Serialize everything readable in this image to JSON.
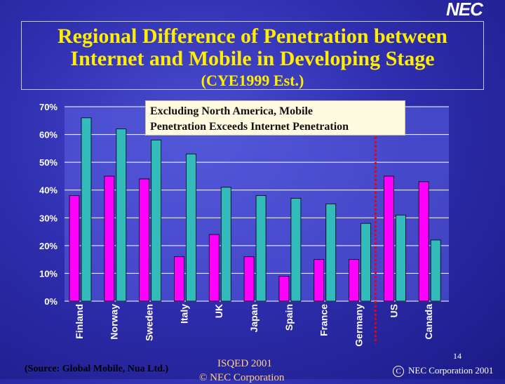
{
  "logo": {
    "text": "NEC"
  },
  "title": {
    "line1": "Regional Difference of Penetration between",
    "line2": "Internet and Mobile in Developing Stage",
    "subtitle": "(CYE1999 Est.)"
  },
  "callout": {
    "line1": "Excluding North America, Mobile",
    "line2": "Penetration Exceeds Internet Penetration"
  },
  "footer": {
    "source": "(Source: Global Mobile, Nua Ltd.)",
    "conference": "ISQED 2001",
    "conference_copy": "© NEC Corporation",
    "page_number": "14",
    "copyright_symbol": "C",
    "copyright": "NEC Corporation 2001"
  },
  "colors": {
    "mobile": "#ff00ff",
    "internet": "#33bbbb",
    "plot_bg": "#5a5fe0",
    "divider": "#ee0000",
    "title": "#ffee00"
  },
  "chart_data": {
    "type": "bar",
    "categories": [
      "Finland",
      "Norway",
      "Sweden",
      "Italy",
      "UK",
      "Japan",
      "Spain",
      "France",
      "Germany",
      "US",
      "Canada"
    ],
    "series": [
      {
        "values": [
          38,
          45,
          44,
          16,
          24,
          16,
          9,
          15,
          15,
          45,
          43
        ]
      },
      {
        "values": [
          66,
          62,
          58,
          53,
          41,
          38,
          37,
          35,
          28,
          31,
          22
        ]
      }
    ],
    "yticks": [
      "0%",
      "10%",
      "20%",
      "30%",
      "40%",
      "50%",
      "60%",
      "70%"
    ],
    "ylim": [
      0,
      70
    ],
    "grid": true,
    "divider_between": [
      "Germany",
      "US"
    ]
  }
}
